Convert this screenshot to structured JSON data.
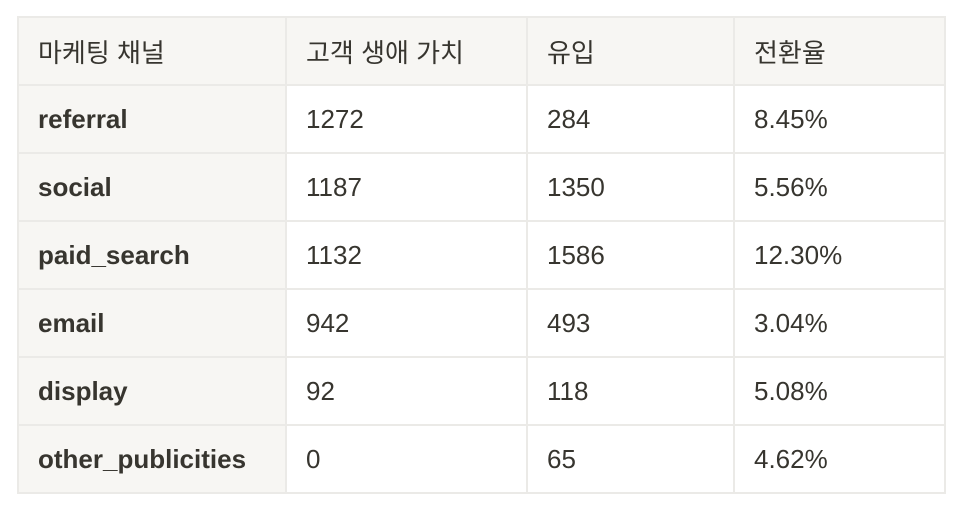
{
  "table": {
    "headers": [
      "마케팅 채널",
      "고객 생애 가치",
      "유입",
      "전환율"
    ],
    "rows": [
      [
        "referral",
        "1272",
        "284",
        "8.45%"
      ],
      [
        "social",
        "1187",
        "1350",
        "5.56%"
      ],
      [
        "paid_search",
        "1132",
        "1586",
        "12.30%"
      ],
      [
        "email",
        "942",
        "493",
        "3.04%"
      ],
      [
        "display",
        "92",
        "118",
        "5.08%"
      ],
      [
        "other_publicities",
        "0",
        "65",
        "4.62%"
      ]
    ]
  }
}
